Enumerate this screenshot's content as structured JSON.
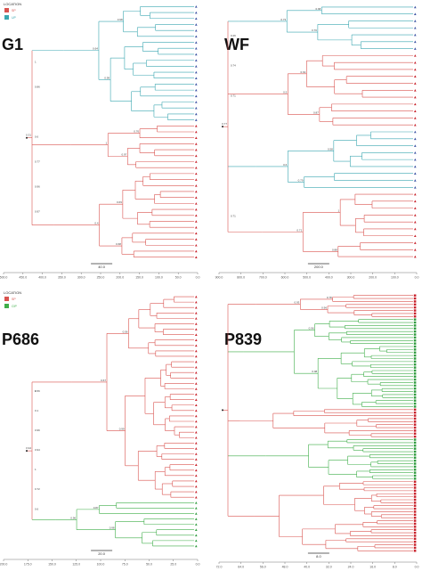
{
  "colors": {
    "SP": "#d9534f",
    "UP": "#3aa6b0",
    "CIP": "#3fae49",
    "tipSP": "#c8202a",
    "tipUP": "#3b52a3",
    "tipCIP": "#2e9b3e"
  },
  "legend_top": {
    "title": "LOCATION",
    "items": [
      {
        "label": "SP",
        "color": "#d9534f"
      },
      {
        "label": "UP",
        "color": "#3aa6b0"
      }
    ]
  },
  "legend_bottom": {
    "title": "LOCATION",
    "items": [
      {
        "label": "SP",
        "color": "#d9534f"
      },
      {
        "label": "CIP",
        "color": "#3fae49"
      }
    ]
  },
  "panels": [
    {
      "title": "G1",
      "scale_label": "40.0",
      "axis_ticks": [
        "500.0",
        "450.0",
        "400.0",
        "350.0",
        "300.0",
        "250.0",
        "200.0",
        "150.0",
        "100.0",
        "50.0",
        "0.0"
      ],
      "node_labels": [
        "0.98",
        "0.99",
        "0.64",
        "0.76",
        "0.97",
        "1",
        "0.69",
        "0.68",
        "0.4",
        "0.31",
        "0.6",
        "0.77",
        "0.96",
        "0.97",
        "1",
        "0.86"
      ],
      "tip_groups": [
        {
          "cls": "UP",
          "n": 20
        },
        {
          "cls": "SP",
          "n": 8
        },
        {
          "cls": "SP",
          "n": 15
        }
      ]
    },
    {
      "title": "WF",
      "scale_label": "200.0",
      "axis_ticks": [
        "900.0",
        "800.0",
        "700.0",
        "600.0",
        "500.0",
        "400.0",
        "300.0",
        "200.0",
        "100.0",
        "0.0"
      ],
      "node_labels": [
        "0.68",
        "0.76",
        "0.73",
        "0.64",
        "0.87",
        "0.5",
        "0.58",
        "0.79",
        "0.6",
        "1",
        "0.88",
        "0.71",
        "0.77",
        "0.71",
        "0.26",
        "0.74",
        "0.71"
      ],
      "tip_groups": [
        {
          "cls": "UP",
          "n": 7
        },
        {
          "cls": "SP",
          "n": 11
        },
        {
          "cls": "UP",
          "n": 9
        },
        {
          "cls": "SP",
          "n": 10
        }
      ]
    },
    {
      "title": "P686",
      "scale_label": "20.0",
      "axis_ticks": [
        "200.0",
        "175.0",
        "150.0",
        "125.0",
        "100.0",
        "75.0",
        "50.0",
        "25.0",
        "0.0"
      ],
      "node_labels": [
        "0.56",
        "0.99",
        "0.67",
        "0.87",
        "0.98",
        "0.96",
        "0.94",
        "0.56",
        "0.1",
        "0.96",
        "0.94",
        "1",
        "0.72",
        "0.6",
        "1"
      ],
      "tip_groups": [
        {
          "cls": "SP",
          "n": 38
        },
        {
          "cls": "CIP",
          "n": 9
        }
      ]
    },
    {
      "title": "P839",
      "scale_label": "8.0",
      "axis_ticks": [
        "72.0",
        "64.0",
        "56.0",
        "48.0",
        "40.0",
        "32.0",
        "24.0",
        "16.0",
        "8.0",
        "0.0"
      ],
      "node_labels": [
        "0.78",
        "0.96",
        "0.93",
        "0.96",
        "0.98"
      ],
      "tip_groups": [
        {
          "cls": "SP",
          "n": 8
        },
        {
          "cls": "CIP",
          "n": 30
        },
        {
          "cls": "SP",
          "n": 10
        },
        {
          "cls": "CIP",
          "n": 14
        },
        {
          "cls": "SP",
          "n": 24
        }
      ]
    }
  ]
}
